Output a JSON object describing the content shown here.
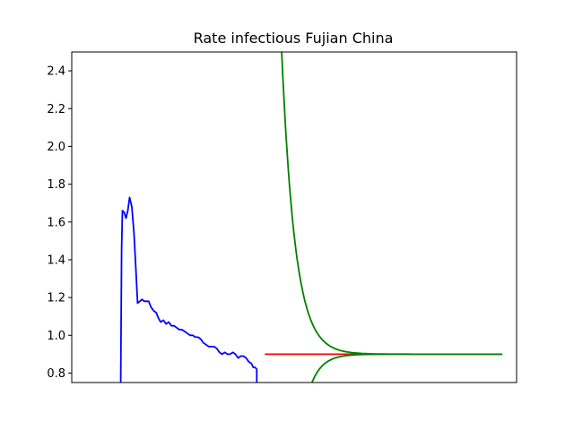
{
  "chart_data": {
    "type": "line",
    "title": "Rate infectious Fujian China",
    "xlabel": "",
    "ylabel": "",
    "ylim": [
      0.75,
      2.5
    ],
    "xlim": [
      0,
      100
    ],
    "yticks": [
      0.8,
      1.0,
      1.2,
      1.4,
      1.6,
      1.8,
      2.0,
      2.2,
      2.4
    ],
    "ytick_labels": [
      "0.8",
      "1.0",
      "1.2",
      "1.4",
      "1.6",
      "1.8",
      "2.0",
      "2.2",
      "2.4"
    ],
    "xticks_visible": false,
    "grid": false,
    "series": [
      {
        "color": "#0000ff",
        "x": [
          11.0,
          11.2,
          11.4,
          11.8,
          12.2,
          12.6,
          13.0,
          13.5,
          14.0,
          14.4,
          14.8,
          15.3,
          15.8,
          16.3,
          16.8,
          17.3,
          17.8,
          18.4,
          19.0,
          19.5,
          20.0,
          20.6,
          21.2,
          21.8,
          22.4,
          23.0,
          23.6,
          24.2,
          24.8,
          25.4,
          26.0,
          26.6,
          27.2,
          27.8,
          28.4,
          29.0,
          29.6,
          30.2,
          30.8,
          31.4,
          32.0,
          32.6,
          33.2,
          33.8,
          34.4,
          35.0,
          35.6,
          36.2,
          36.8,
          37.4,
          38.0,
          38.6,
          39.2,
          39.8,
          40.4,
          40.8,
          41.2,
          41.6,
          41.6
        ],
        "y": [
          0.75,
          1.46,
          1.66,
          1.65,
          1.62,
          1.66,
          1.73,
          1.68,
          1.54,
          1.36,
          1.17,
          1.18,
          1.19,
          1.18,
          1.18,
          1.18,
          1.15,
          1.13,
          1.12,
          1.09,
          1.07,
          1.08,
          1.06,
          1.07,
          1.05,
          1.05,
          1.04,
          1.03,
          1.03,
          1.02,
          1.01,
          1.0,
          1.0,
          0.99,
          0.99,
          0.98,
          0.96,
          0.95,
          0.94,
          0.94,
          0.94,
          0.93,
          0.91,
          0.9,
          0.91,
          0.9,
          0.9,
          0.91,
          0.9,
          0.88,
          0.89,
          0.89,
          0.88,
          0.86,
          0.85,
          0.83,
          0.83,
          0.82,
          0.75
        ]
      },
      {
        "color": "#ff0000",
        "x": [
          43.4,
          70.0
        ],
        "y": [
          0.9,
          0.9
        ]
      },
      {
        "color": "#008000",
        "model": "decay",
        "x_start": 47.2,
        "x_end": 96.8,
        "y_start": 2.5,
        "y_asymptote": 0.9,
        "tau": 3.0
      },
      {
        "color": "#008000",
        "model": "growth",
        "x_start": 54.0,
        "x_end": 96.8,
        "y_start": 0.75,
        "y_asymptote": 0.9,
        "tau": 2.6
      }
    ]
  }
}
